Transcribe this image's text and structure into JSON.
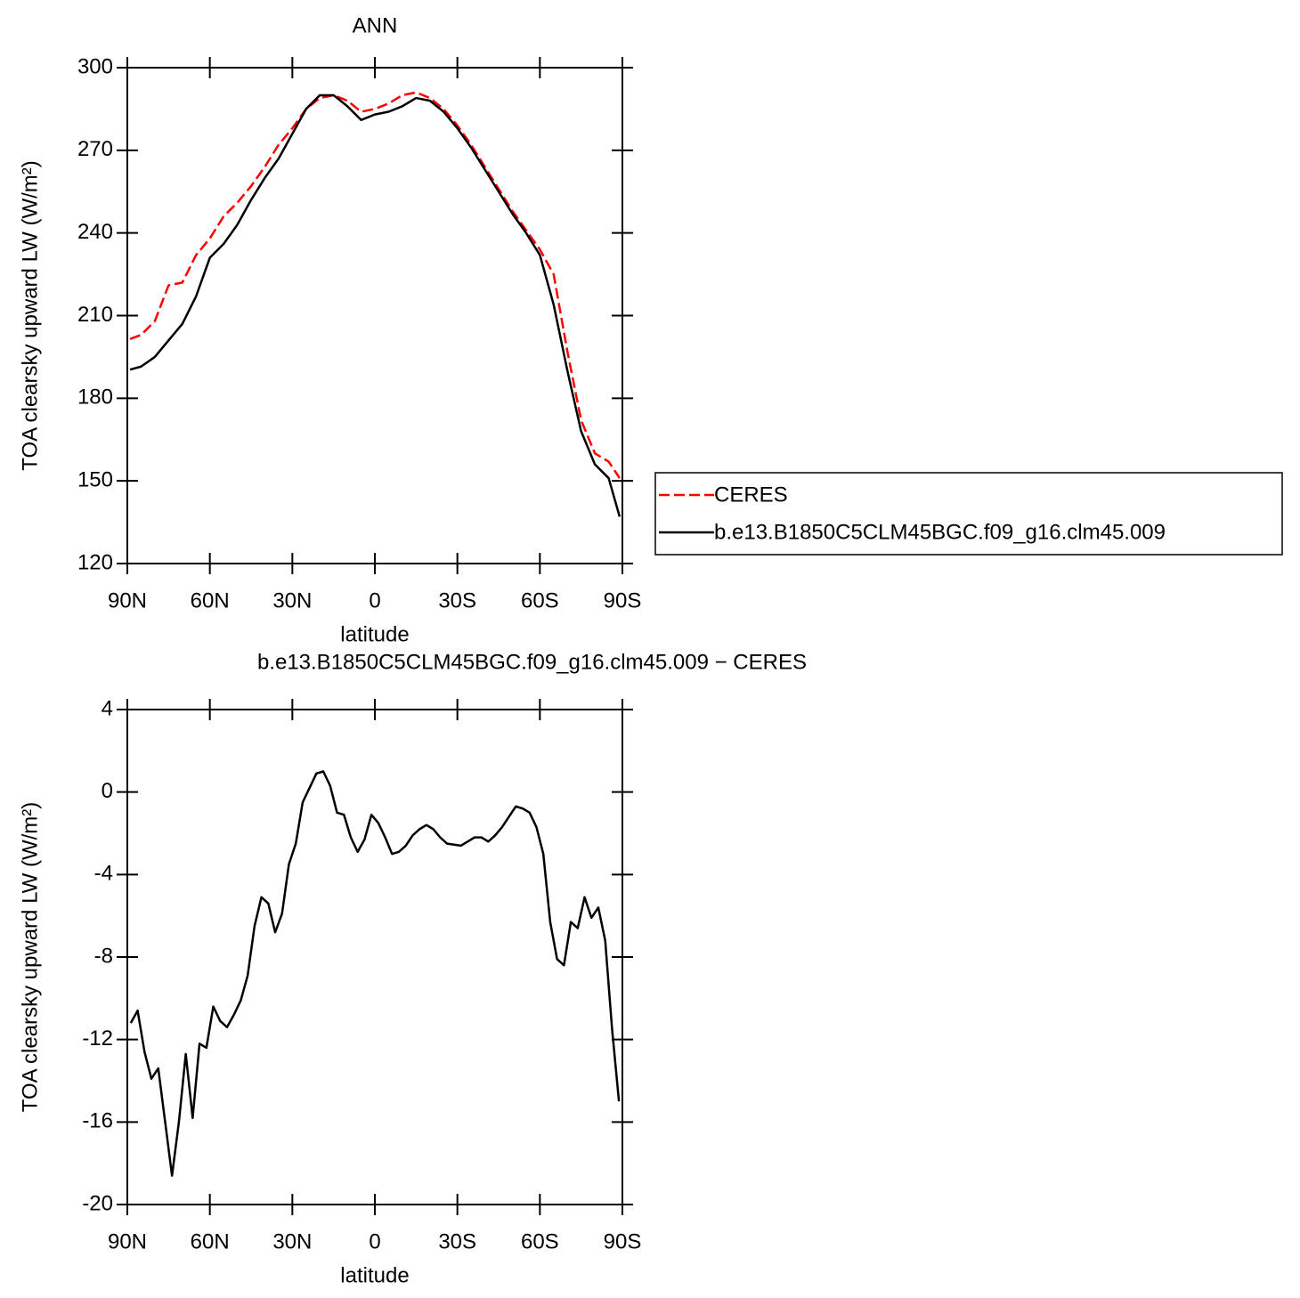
{
  "chart_data": [
    {
      "type": "line",
      "title": "ANN",
      "xlabel": "latitude",
      "ylabel": "TOA clearsky upward LW (W/m²)",
      "x": [
        89,
        85,
        80,
        75,
        70,
        65,
        60,
        55,
        50,
        45,
        40,
        35,
        30,
        25,
        20,
        15,
        10,
        5,
        0,
        -5,
        -10,
        -15,
        -20,
        -25,
        -30,
        -35,
        -40,
        -45,
        -50,
        -55,
        -60,
        -65,
        -70,
        -75,
        -80,
        -85,
        -89
      ],
      "series": [
        {
          "name": "CERES",
          "color": "#ff0000",
          "dashed": true,
          "values": [
            201.5,
            203,
            208,
            221,
            222,
            232,
            238,
            246,
            251,
            257,
            264,
            272,
            278,
            285,
            289,
            290,
            288,
            284,
            285,
            287,
            290,
            291,
            289,
            285,
            279,
            272,
            264,
            256,
            248,
            241,
            234,
            225,
            197,
            172,
            160,
            157,
            151
          ]
        },
        {
          "name": "b.e13.B1850C5CLM45BGC.f09_g16.clm45.009",
          "color": "#000000",
          "dashed": false,
          "values": [
            190.4,
            191.5,
            195,
            201,
            207,
            217,
            231,
            236,
            243,
            252,
            260,
            267,
            276,
            285,
            290,
            290,
            286,
            281,
            283,
            284,
            286,
            289,
            288,
            284,
            278,
            271,
            263,
            255,
            247,
            240,
            232,
            214,
            190,
            168,
            156,
            151,
            137
          ]
        }
      ],
      "xlim": [
        90,
        -90
      ],
      "xticks": [
        {
          "value": 90,
          "label": "90N"
        },
        {
          "value": 60,
          "label": "60N"
        },
        {
          "value": 30,
          "label": "30N"
        },
        0,
        {
          "value": -30,
          "label": "30S"
        },
        {
          "value": -60,
          "label": "60S"
        },
        {
          "value": -90,
          "label": "90S"
        }
      ],
      "ylim": [
        120,
        300
      ],
      "yticks": [
        120,
        150,
        180,
        210,
        240,
        270,
        300
      ],
      "legend": "right"
    },
    {
      "type": "line",
      "title": "b.e13.B1850C5CLM45BGC.f09_g16.clm45.009 − CERES",
      "xlabel": "latitude",
      "ylabel": "TOA clearsky upward LW (W/m²)",
      "x": [
        88.75,
        86.25,
        83.75,
        81.25,
        78.75,
        76.25,
        73.75,
        71.25,
        68.75,
        66.25,
        63.75,
        61.25,
        58.75,
        56.25,
        53.75,
        51.25,
        48.75,
        46.25,
        43.75,
        41.25,
        38.75,
        36.25,
        33.75,
        31.25,
        28.75,
        26.25,
        23.75,
        21.25,
        18.75,
        16.25,
        13.75,
        11.25,
        8.75,
        6.25,
        3.75,
        1.25,
        -1.25,
        -3.75,
        -6.25,
        -8.75,
        -11.25,
        -13.75,
        -16.25,
        -18.75,
        -21.25,
        -23.75,
        -26.25,
        -28.75,
        -31.25,
        -33.75,
        -36.25,
        -38.75,
        -41.25,
        -43.75,
        -46.25,
        -48.75,
        -51.25,
        -53.75,
        -56.25,
        -58.75,
        -61.25,
        -63.75,
        -66.25,
        -68.75,
        -71.25,
        -73.75,
        -76.25,
        -78.75,
        -81.25,
        -83.75,
        -86.25,
        -88.75
      ],
      "series": [
        {
          "color": "#000000",
          "dashed": false,
          "values": [
            -11.2,
            -10.6,
            -12.6,
            -13.9,
            -13.4,
            -16,
            -18.6,
            -16,
            -12.7,
            -15.8,
            -12.2,
            -12.4,
            -10.4,
            -11.1,
            -11.4,
            -10.8,
            -10.1,
            -8.9,
            -6.5,
            -5.1,
            -5.4,
            -6.8,
            -5.9,
            -3.5,
            -2.5,
            -0.5,
            0.2,
            0.9,
            1,
            0.3,
            -1,
            -1.1,
            -2.2,
            -2.9,
            -2.3,
            -1.1,
            -1.5,
            -2.2,
            -3.0,
            -2.9,
            -2.6,
            -2.1,
            -1.8,
            -1.6,
            -1.8,
            -2.2,
            -2.5,
            -2.55,
            -2.6,
            -2.4,
            -2.2,
            -2.2,
            -2.4,
            -2.1,
            -1.7,
            -1.2,
            -0.7,
            -0.8,
            -1.0,
            -1.7,
            -3.0,
            -6.3,
            -8.1,
            -8.4,
            -6.3,
            -6.6,
            -5.1,
            -6.1,
            -5.6,
            -7.2,
            -11.5,
            -15
          ]
        }
      ],
      "xlim": [
        90,
        -90
      ],
      "xticks": [
        {
          "value": 90,
          "label": "90N"
        },
        {
          "value": 60,
          "label": "60N"
        },
        {
          "value": 30,
          "label": "30N"
        },
        0,
        {
          "value": -30,
          "label": "30S"
        },
        {
          "value": -60,
          "label": "60S"
        },
        {
          "value": -90,
          "label": "90S"
        }
      ],
      "ylim": [
        -20,
        4
      ],
      "yticks": [
        -20,
        -16,
        -12,
        -8,
        -4,
        0,
        4
      ]
    }
  ]
}
